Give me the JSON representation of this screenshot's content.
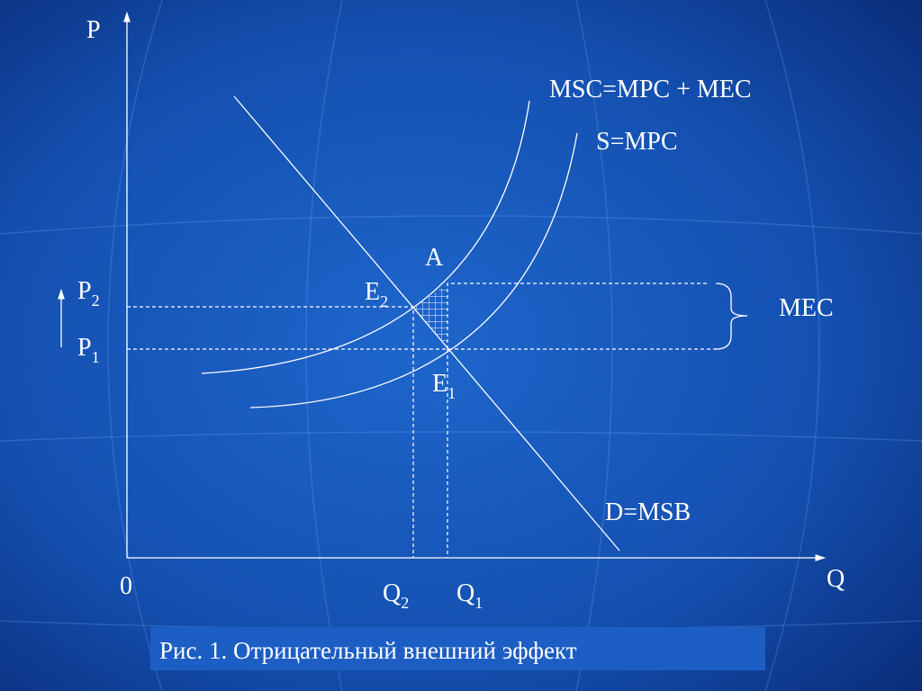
{
  "axes": {
    "y_label": "P",
    "x_label": "Q",
    "origin": "0"
  },
  "curves": {
    "msc": "MSC=MPC + MEC",
    "s": "S=MPC",
    "d": "D=MSB"
  },
  "points": {
    "a": "A",
    "e2": {
      "base": "E",
      "sub": "2"
    },
    "e1": {
      "base": "E",
      "sub": "1"
    }
  },
  "levels": {
    "p2": {
      "base": "P",
      "sub": "2"
    },
    "p1": {
      "base": "P",
      "sub": "1"
    },
    "q2": {
      "base": "Q",
      "sub": "2"
    },
    "q1": {
      "base": "Q",
      "sub": "1"
    }
  },
  "brace_label": "MEC",
  "caption": "Рис. 1. Отрицательный внешний эффект"
}
